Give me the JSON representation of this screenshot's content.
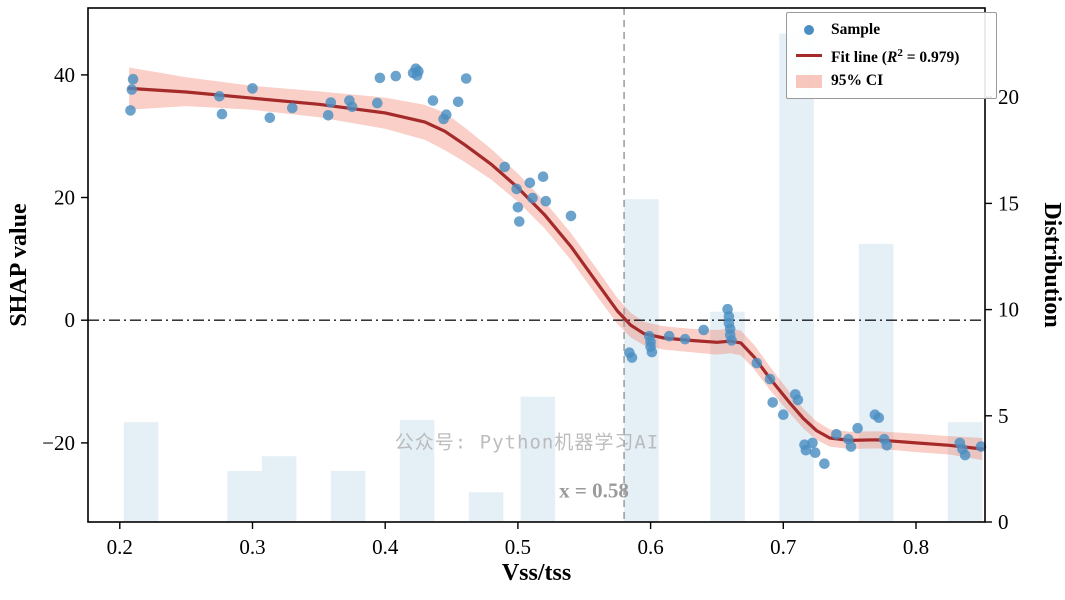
{
  "chart_data": {
    "type": "scatter",
    "title": "",
    "xlabel": "Vss/tss",
    "ylabel_left": "SHAP value",
    "ylabel_right": "Distribution",
    "x_range": [
      0.176,
      0.852
    ],
    "y_left_range": [
      -32.9,
      50.9
    ],
    "y_right_range": [
      0,
      24.2
    ],
    "grid": false,
    "legend_position": "upper right",
    "x_ticks": [
      {
        "v": 0.2,
        "label": "0.2"
      },
      {
        "v": 0.3,
        "label": "0.3"
      },
      {
        "v": 0.4,
        "label": "0.4"
      },
      {
        "v": 0.5,
        "label": "0.5"
      },
      {
        "v": 0.6,
        "label": "0.6"
      },
      {
        "v": 0.7,
        "label": "0.7"
      },
      {
        "v": 0.8,
        "label": "0.8"
      }
    ],
    "y_left_ticks": [
      {
        "v": -20,
        "label": "−20"
      },
      {
        "v": 0,
        "label": "0"
      },
      {
        "v": 20,
        "label": "20"
      },
      {
        "v": 40,
        "label": "40"
      }
    ],
    "y_right_ticks": [
      {
        "v": 0,
        "label": "0"
      },
      {
        "v": 5,
        "label": "5"
      },
      {
        "v": 10,
        "label": "10"
      },
      {
        "v": 15,
        "label": "15"
      },
      {
        "v": 20,
        "label": "20"
      }
    ],
    "hline_y": 0,
    "vline_x": 0.58,
    "annotation": {
      "text": "x = 0.58",
      "x": 0.56,
      "y": -28
    },
    "watermark": "公众号: Python机器学习AI",
    "legend": {
      "sample": "Sample",
      "fit_prefix": "Fit line (",
      "fit_var": "R",
      "fit_sup": "2",
      "fit_suffix": " = 0.979)",
      "ci": "95% CI",
      "r_squared": 0.979
    },
    "colors": {
      "scatter": "#4a8fc2",
      "fit": "#a52a2a",
      "ci": "#f0826f",
      "hist": "#d3e4f0",
      "vline": "#a0a0a0",
      "hline": "#1a1a1a",
      "watermark": "#b6b6b6",
      "annotation": "#9b9b9b"
    },
    "scatter": [
      [
        0.208,
        34.2
      ],
      [
        0.209,
        37.6
      ],
      [
        0.21,
        39.3
      ],
      [
        0.275,
        36.5
      ],
      [
        0.277,
        33.6
      ],
      [
        0.3,
        37.8
      ],
      [
        0.313,
        33.0
      ],
      [
        0.33,
        34.6
      ],
      [
        0.357,
        33.4
      ],
      [
        0.359,
        35.5
      ],
      [
        0.373,
        35.8
      ],
      [
        0.375,
        34.8
      ],
      [
        0.394,
        35.4
      ],
      [
        0.396,
        39.5
      ],
      [
        0.408,
        39.8
      ],
      [
        0.421,
        40.3
      ],
      [
        0.423,
        41.0
      ],
      [
        0.424,
        39.9
      ],
      [
        0.425,
        40.6
      ],
      [
        0.436,
        35.8
      ],
      [
        0.444,
        32.8
      ],
      [
        0.446,
        33.5
      ],
      [
        0.455,
        35.6
      ],
      [
        0.461,
        39.4
      ],
      [
        0.49,
        25.0
      ],
      [
        0.499,
        21.4
      ],
      [
        0.5,
        18.4
      ],
      [
        0.501,
        16.1
      ],
      [
        0.509,
        22.4
      ],
      [
        0.511,
        19.9
      ],
      [
        0.519,
        23.4
      ],
      [
        0.521,
        19.4
      ],
      [
        0.54,
        17.0
      ],
      [
        0.584,
        -5.3
      ],
      [
        0.586,
        -6.1
      ],
      [
        0.599,
        -2.6
      ],
      [
        0.6,
        -3.5
      ],
      [
        0.6,
        -4.3
      ],
      [
        0.601,
        -5.2
      ],
      [
        0.614,
        -2.6
      ],
      [
        0.626,
        -3.1
      ],
      [
        0.64,
        -1.6
      ],
      [
        0.658,
        1.8
      ],
      [
        0.659,
        0.6
      ],
      [
        0.659,
        -0.5
      ],
      [
        0.66,
        -1.4
      ],
      [
        0.66,
        -2.4
      ],
      [
        0.661,
        -3.3
      ],
      [
        0.68,
        -7.0
      ],
      [
        0.69,
        -9.6
      ],
      [
        0.692,
        -13.4
      ],
      [
        0.7,
        -15.4
      ],
      [
        0.709,
        -12.1
      ],
      [
        0.711,
        -13.0
      ],
      [
        0.716,
        -20.3
      ],
      [
        0.717,
        -21.2
      ],
      [
        0.722,
        -20.0
      ],
      [
        0.724,
        -21.6
      ],
      [
        0.731,
        -23.4
      ],
      [
        0.74,
        -18.6
      ],
      [
        0.749,
        -19.4
      ],
      [
        0.751,
        -20.6
      ],
      [
        0.756,
        -17.6
      ],
      [
        0.769,
        -15.4
      ],
      [
        0.772,
        -15.9
      ],
      [
        0.776,
        -19.4
      ],
      [
        0.778,
        -20.4
      ],
      [
        0.833,
        -20.0
      ],
      [
        0.835,
        -21.0
      ],
      [
        0.837,
        -22.0
      ],
      [
        0.849,
        -20.6
      ]
    ],
    "fit_line": [
      [
        0.207,
        37.8
      ],
      [
        0.25,
        37.2
      ],
      [
        0.3,
        36.2
      ],
      [
        0.35,
        35.2
      ],
      [
        0.4,
        33.8
      ],
      [
        0.43,
        32.3
      ],
      [
        0.445,
        30.8
      ],
      [
        0.46,
        28.6
      ],
      [
        0.48,
        25.4
      ],
      [
        0.5,
        21.6
      ],
      [
        0.52,
        17.2
      ],
      [
        0.54,
        12.0
      ],
      [
        0.56,
        6.0
      ],
      [
        0.575,
        1.5
      ],
      [
        0.585,
        -0.8
      ],
      [
        0.595,
        -2.2
      ],
      [
        0.61,
        -2.9
      ],
      [
        0.63,
        -3.3
      ],
      [
        0.65,
        -3.6
      ],
      [
        0.66,
        -3.4
      ],
      [
        0.668,
        -3.7
      ],
      [
        0.678,
        -6.0
      ],
      [
        0.69,
        -9.5
      ],
      [
        0.705,
        -13.5
      ],
      [
        0.715,
        -16.0
      ],
      [
        0.725,
        -18.0
      ],
      [
        0.735,
        -19.2
      ],
      [
        0.75,
        -19.6
      ],
      [
        0.77,
        -19.5
      ],
      [
        0.8,
        -20.0
      ],
      [
        0.825,
        -20.4
      ],
      [
        0.85,
        -21.0
      ]
    ],
    "ci_band": [
      [
        0.207,
        34.3,
        41.2
      ],
      [
        0.25,
        34.9,
        39.6
      ],
      [
        0.3,
        34.3,
        38.2
      ],
      [
        0.35,
        33.1,
        37.3
      ],
      [
        0.4,
        31.2,
        36.3
      ],
      [
        0.43,
        29.4,
        35.1
      ],
      [
        0.445,
        27.7,
        33.8
      ],
      [
        0.46,
        25.8,
        31.4
      ],
      [
        0.48,
        22.9,
        27.9
      ],
      [
        0.5,
        19.3,
        23.9
      ],
      [
        0.52,
        15.0,
        19.4
      ],
      [
        0.54,
        9.8,
        14.2
      ],
      [
        0.56,
        3.8,
        8.2
      ],
      [
        0.575,
        -0.6,
        3.6
      ],
      [
        0.585,
        -2.8,
        1.2
      ],
      [
        0.595,
        -4.1,
        -0.3
      ],
      [
        0.61,
        -4.8,
        -1.0
      ],
      [
        0.63,
        -5.2,
        -1.4
      ],
      [
        0.65,
        -5.6,
        -1.6
      ],
      [
        0.66,
        -5.4,
        -1.4
      ],
      [
        0.668,
        -5.7,
        -1.7
      ],
      [
        0.678,
        -8.0,
        -4.0
      ],
      [
        0.69,
        -11.4,
        -7.6
      ],
      [
        0.705,
        -15.2,
        -11.8
      ],
      [
        0.715,
        -17.6,
        -14.4
      ],
      [
        0.725,
        -19.5,
        -16.5
      ],
      [
        0.735,
        -20.6,
        -17.8
      ],
      [
        0.75,
        -21.0,
        -18.2
      ],
      [
        0.77,
        -20.9,
        -18.1
      ],
      [
        0.8,
        -21.5,
        -18.5
      ],
      [
        0.825,
        -21.9,
        -18.9
      ],
      [
        0.85,
        -22.8,
        -19.2
      ]
    ],
    "histogram": {
      "axis": "right",
      "bars": [
        {
          "x0": 0.203,
          "x1": 0.229,
          "h": 4.7
        },
        {
          "x0": 0.281,
          "x1": 0.307,
          "h": 2.4
        },
        {
          "x0": 0.307,
          "x1": 0.333,
          "h": 3.1
        },
        {
          "x0": 0.359,
          "x1": 0.385,
          "h": 2.4
        },
        {
          "x0": 0.411,
          "x1": 0.437,
          "h": 4.8
        },
        {
          "x0": 0.463,
          "x1": 0.489,
          "h": 1.4
        },
        {
          "x0": 0.502,
          "x1": 0.528,
          "h": 5.9
        },
        {
          "x0": 0.58,
          "x1": 0.606,
          "h": 15.2
        },
        {
          "x0": 0.645,
          "x1": 0.671,
          "h": 9.9
        },
        {
          "x0": 0.697,
          "x1": 0.723,
          "h": 23.0
        },
        {
          "x0": 0.757,
          "x1": 0.783,
          "h": 13.1
        },
        {
          "x0": 0.824,
          "x1": 0.85,
          "h": 4.7
        }
      ]
    }
  }
}
